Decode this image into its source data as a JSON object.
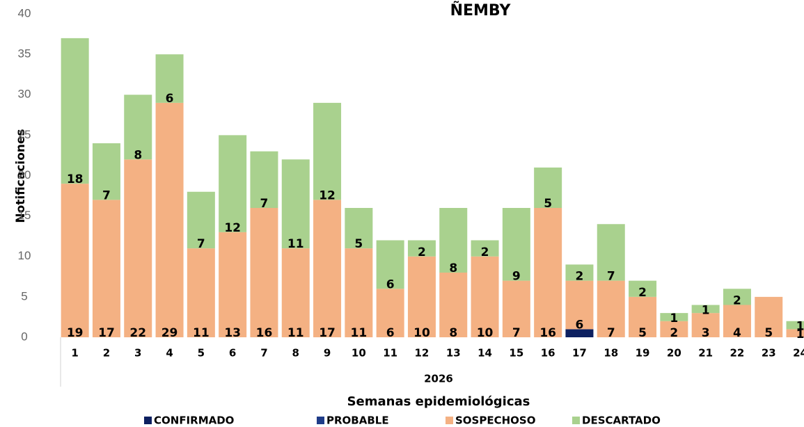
{
  "chart_data": {
    "type": "stacked_bar",
    "title": "ÑEMBY",
    "y_label": "Notificaciones",
    "x_group_label": "2026",
    "x_label": "Semanas epidemiológicas",
    "categories": [
      "1",
      "2",
      "3",
      "4",
      "5",
      "6",
      "7",
      "8",
      "9",
      "10",
      "11",
      "12",
      "13",
      "14",
      "15",
      "16",
      "17",
      "18",
      "19",
      "20",
      "21",
      "22",
      "23",
      "24"
    ],
    "series": [
      {
        "name": "CONFIRMADO",
        "color": "#0d2060",
        "values": [
          null,
          null,
          null,
          null,
          null,
          null,
          null,
          null,
          null,
          null,
          null,
          null,
          null,
          null,
          null,
          null,
          1,
          null,
          null,
          null,
          null,
          null,
          null,
          null
        ]
      },
      {
        "name": "PROBABLE",
        "color": "#1f3c88",
        "values": [
          null,
          null,
          null,
          null,
          null,
          null,
          null,
          null,
          null,
          null,
          null,
          null,
          null,
          null,
          null,
          null,
          null,
          null,
          null,
          null,
          null,
          null,
          null,
          null
        ]
      },
      {
        "name": "SOSPECHOSO",
        "color": "#f4b183",
        "values": [
          19,
          17,
          22,
          29,
          11,
          13,
          16,
          11,
          17,
          11,
          6,
          10,
          8,
          10,
          7,
          16,
          6,
          7,
          5,
          2,
          3,
          4,
          5,
          1
        ]
      },
      {
        "name": "DESCARTADO",
        "color": "#a9d18e",
        "values": [
          18,
          7,
          8,
          6,
          7,
          12,
          7,
          11,
          12,
          5,
          6,
          2,
          8,
          2,
          9,
          5,
          2,
          7,
          2,
          1,
          1,
          2,
          null,
          1
        ]
      }
    ],
    "label_series": [
      2,
      3
    ],
    "ylim": [
      0,
      40
    ],
    "yticks": [
      0,
      5,
      10,
      15,
      20,
      25,
      30,
      35,
      40
    ],
    "grid": false
  }
}
